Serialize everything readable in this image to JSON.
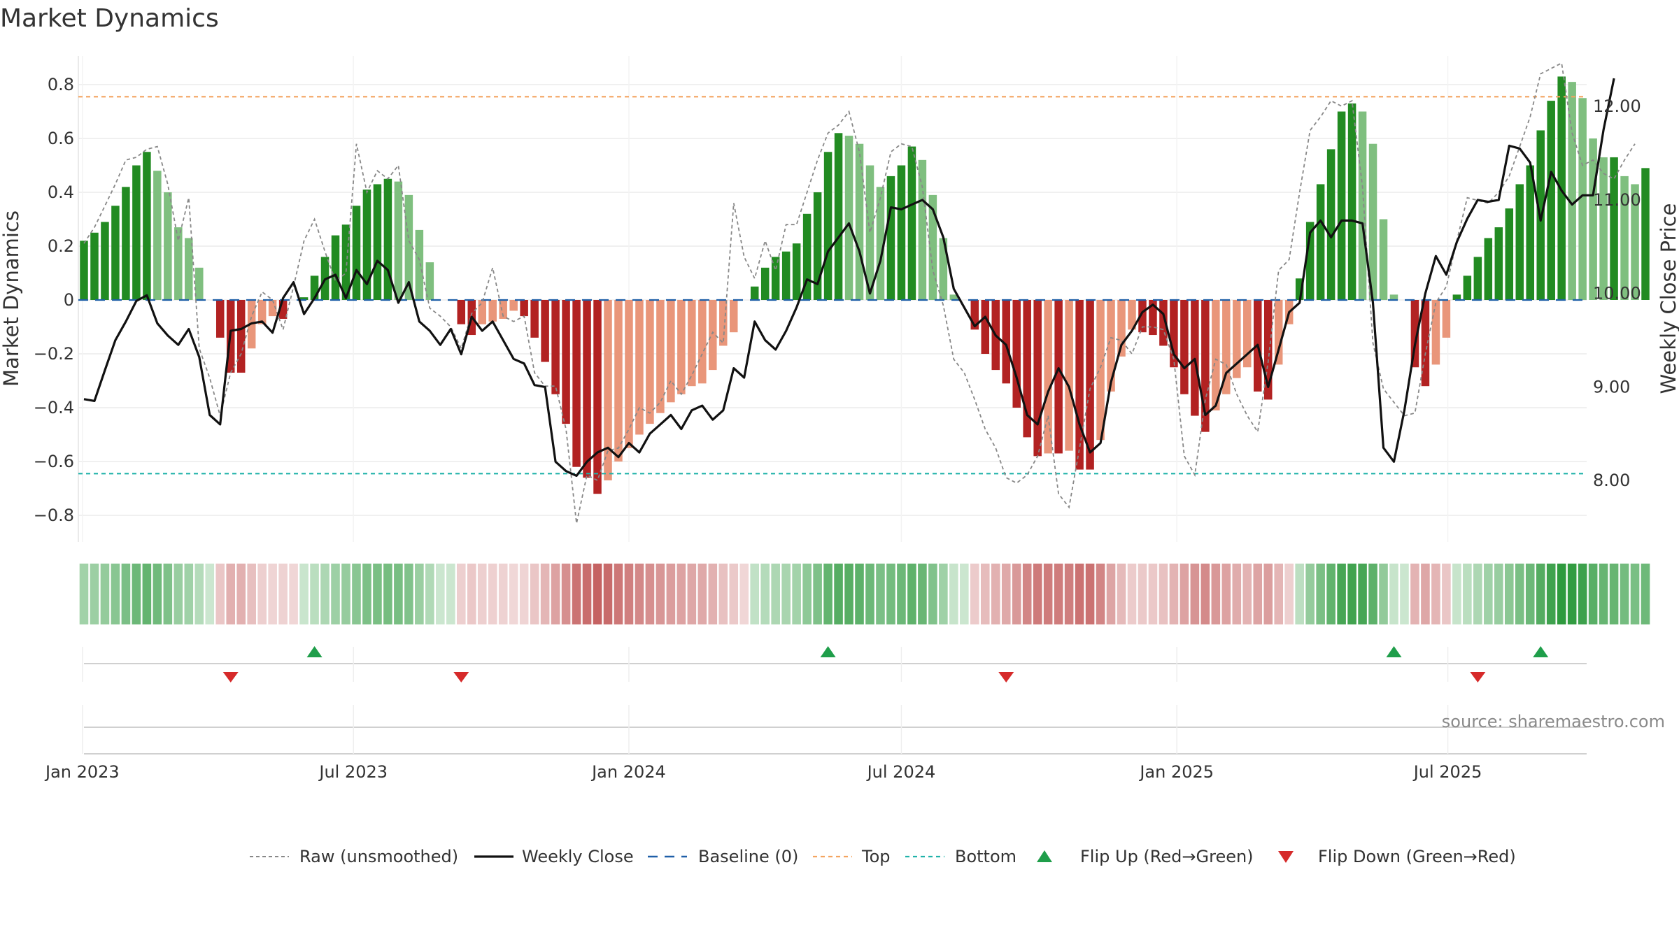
{
  "title": "Market Dynamics",
  "source": "source: sharemaestro.com",
  "colors": {
    "strong_green": "#228B22",
    "light_green": "#7FBF7F",
    "strong_red": "#B22222",
    "light_red": "#E9967A",
    "raw": "#888888",
    "close": "#111111",
    "baseline": "#1f5fa8",
    "top": "#F4A460",
    "bottom": "#20B2AA"
  },
  "chart_data": {
    "type": "bar",
    "x_start": "2023-01-02",
    "x_step_days": 7,
    "x_ticks": [
      {
        "date": "2023-01-01",
        "label": "Jan 2023"
      },
      {
        "date": "2023-07-01",
        "label": "Jul 2023"
      },
      {
        "date": "2024-01-01",
        "label": "Jan 2024"
      },
      {
        "date": "2024-07-01",
        "label": "Jul 2024"
      },
      {
        "date": "2025-01-01",
        "label": "Jan 2025"
      },
      {
        "date": "2025-07-01",
        "label": "Jul 2025"
      }
    ],
    "left_axis": {
      "label": "Market Dynamics",
      "ylim": [
        -0.9,
        0.9
      ],
      "ticks": [
        {
          "v": 0.8,
          "label": "0.8"
        },
        {
          "v": 0.6,
          "label": "0.6"
        },
        {
          "v": 0.4,
          "label": "0.4"
        },
        {
          "v": 0.2,
          "label": "0.2"
        },
        {
          "v": 0.0,
          "label": "0"
        },
        {
          "v": -0.2,
          "label": "−0.2"
        },
        {
          "v": -0.4,
          "label": "−0.4"
        },
        {
          "v": -0.6,
          "label": "−0.6"
        },
        {
          "v": -0.8,
          "label": "−0.8"
        }
      ]
    },
    "right_axis": {
      "label": "Weekly Close Price",
      "ylim": [
        7.35,
        12.6
      ],
      "ticks": [
        {
          "v": 12.0,
          "label": "12.00"
        },
        {
          "v": 11.0,
          "label": "11.00"
        },
        {
          "v": 10.0,
          "label": "10.00"
        },
        {
          "v": 9.0,
          "label": "9.00"
        },
        {
          "v": 8.0,
          "label": "8.00"
        }
      ]
    },
    "top_level": 0.755,
    "bottom_level": -0.645,
    "smoothed": [
      0.22,
      0.25,
      0.29,
      0.35,
      0.42,
      0.5,
      0.55,
      0.48,
      0.4,
      0.27,
      0.23,
      0.12,
      0.0,
      -0.14,
      -0.27,
      -0.27,
      -0.18,
      -0.09,
      -0.06,
      -0.07,
      0.0,
      0.01,
      0.09,
      0.16,
      0.24,
      0.28,
      0.35,
      0.41,
      0.43,
      0.45,
      0.44,
      0.39,
      0.26,
      0.14,
      0.0,
      0.0,
      -0.09,
      -0.13,
      -0.09,
      -0.08,
      -0.07,
      -0.04,
      -0.06,
      -0.14,
      -0.23,
      -0.35,
      -0.46,
      -0.62,
      -0.66,
      -0.72,
      -0.67,
      -0.6,
      -0.55,
      -0.5,
      -0.46,
      -0.42,
      -0.38,
      -0.35,
      -0.32,
      -0.31,
      -0.26,
      -0.17,
      -0.12,
      0.0,
      0.05,
      0.12,
      0.16,
      0.18,
      0.21,
      0.32,
      0.4,
      0.55,
      0.62,
      0.61,
      0.58,
      0.5,
      0.42,
      0.46,
      0.5,
      0.57,
      0.52,
      0.39,
      0.23,
      0.02,
      0.0,
      -0.11,
      -0.2,
      -0.26,
      -0.31,
      -0.4,
      -0.51,
      -0.58,
      -0.57,
      -0.57,
      -0.56,
      -0.63,
      -0.63,
      -0.52,
      -0.34,
      -0.21,
      -0.11,
      -0.12,
      -0.13,
      -0.17,
      -0.25,
      -0.35,
      -0.43,
      -0.49,
      -0.41,
      -0.35,
      -0.29,
      -0.25,
      -0.34,
      -0.37,
      -0.24,
      -0.09,
      0.08,
      0.29,
      0.43,
      0.56,
      0.7,
      0.73,
      0.7,
      0.58,
      0.3,
      0.02,
      0.0,
      -0.25,
      -0.32,
      -0.24,
      -0.14,
      0.02,
      0.09,
      0.16,
      0.23,
      0.27,
      0.34,
      0.43,
      0.5,
      0.63,
      0.74,
      0.83,
      0.81,
      0.75,
      0.6,
      0.53,
      0.53,
      0.46,
      0.43,
      0.49
    ],
    "raw": [
      0.21,
      0.27,
      0.35,
      0.43,
      0.52,
      0.53,
      0.56,
      0.57,
      0.43,
      0.22,
      0.38,
      -0.18,
      -0.29,
      -0.43,
      -0.27,
      -0.2,
      -0.06,
      0.03,
      0.0,
      -0.11,
      0.05,
      0.22,
      0.3,
      0.18,
      0.07,
      0.1,
      0.58,
      0.4,
      0.48,
      0.45,
      0.5,
      0.22,
      0.15,
      -0.03,
      -0.06,
      -0.1,
      -0.18,
      -0.05,
      -0.01,
      0.12,
      -0.06,
      -0.08,
      -0.06,
      -0.27,
      -0.32,
      -0.32,
      -0.48,
      -0.83,
      -0.65,
      -0.67,
      -0.56,
      -0.55,
      -0.48,
      -0.4,
      -0.42,
      -0.38,
      -0.3,
      -0.35,
      -0.28,
      -0.2,
      -0.12,
      -0.16,
      0.36,
      0.16,
      0.08,
      0.22,
      0.11,
      0.28,
      0.28,
      0.4,
      0.52,
      0.62,
      0.65,
      0.7,
      0.55,
      0.25,
      0.38,
      0.55,
      0.58,
      0.57,
      0.42,
      0.11,
      -0.02,
      -0.22,
      -0.27,
      -0.37,
      -0.48,
      -0.55,
      -0.66,
      -0.68,
      -0.65,
      -0.58,
      -0.43,
      -0.72,
      -0.77,
      -0.55,
      -0.33,
      -0.25,
      -0.14,
      -0.15,
      -0.2,
      -0.1,
      -0.1,
      -0.11,
      -0.22,
      -0.58,
      -0.65,
      -0.37,
      -0.22,
      -0.24,
      -0.35,
      -0.43,
      -0.49,
      -0.23,
      0.11,
      0.15,
      0.4,
      0.63,
      0.68,
      0.74,
      0.72,
      0.74,
      0.42,
      -0.16,
      -0.33,
      -0.38,
      -0.43,
      -0.42,
      -0.2,
      -0.01,
      0.05,
      0.22,
      0.38,
      0.37,
      0.36,
      0.4,
      0.46,
      0.57,
      0.68,
      0.84,
      0.86,
      0.88,
      0.62,
      0.5,
      0.52,
      0.47,
      0.45,
      0.52,
      0.58
    ],
    "close": [
      8.87,
      8.85,
      9.18,
      9.5,
      9.7,
      9.92,
      9.98,
      9.68,
      9.55,
      9.45,
      9.62,
      9.32,
      8.7,
      8.6,
      9.6,
      9.62,
      9.68,
      9.7,
      9.58,
      9.95,
      10.12,
      9.78,
      9.95,
      10.15,
      10.2,
      9.95,
      10.25,
      10.1,
      10.35,
      10.25,
      9.9,
      10.12,
      9.7,
      9.6,
      9.45,
      9.62,
      9.35,
      9.75,
      9.6,
      9.7,
      9.5,
      9.3,
      9.25,
      9.02,
      9.0,
      8.2,
      8.1,
      8.05,
      8.2,
      8.3,
      8.35,
      8.25,
      8.4,
      8.3,
      8.5,
      8.6,
      8.7,
      8.55,
      8.75,
      8.8,
      8.65,
      8.75,
      9.2,
      9.1,
      9.7,
      9.5,
      9.4,
      9.6,
      9.85,
      10.15,
      10.1,
      10.45,
      10.6,
      10.75,
      10.45,
      10.0,
      10.35,
      10.92,
      10.9,
      10.95,
      11.0,
      10.9,
      10.6,
      10.05,
      9.85,
      9.65,
      9.75,
      9.55,
      9.45,
      9.1,
      8.7,
      8.6,
      8.95,
      9.2,
      9.0,
      8.6,
      8.3,
      8.4,
      9.05,
      9.45,
      9.6,
      9.8,
      9.88,
      9.78,
      9.35,
      9.2,
      9.3,
      8.7,
      8.8,
      9.15,
      9.25,
      9.35,
      9.45,
      9.0,
      9.4,
      9.8,
      9.9,
      10.65,
      10.78,
      10.6,
      10.78,
      10.78,
      10.75,
      9.9,
      8.35,
      8.2,
      8.75,
      9.45,
      10.0,
      10.4,
      10.2,
      10.55,
      10.8,
      11.0,
      10.98,
      11.0,
      11.58,
      11.55,
      11.4,
      10.78,
      11.3,
      11.1,
      10.95,
      11.05,
      11.05,
      11.75,
      12.3
    ],
    "flip_up_weeks": [
      22,
      71,
      125,
      139
    ],
    "flip_down_weeks": [
      14,
      36,
      88,
      133
    ],
    "series": [
      {
        "name": "Raw (unsmoothed)",
        "key": "raw"
      },
      {
        "name": "Weekly Close",
        "key": "close"
      },
      {
        "name": "Baseline (0)",
        "key": "baseline"
      },
      {
        "name": "Top",
        "key": "top"
      },
      {
        "name": "Bottom",
        "key": "bottom"
      },
      {
        "name": "Flip Up (Red→Green)",
        "key": "flip_up"
      },
      {
        "name": "Flip Down (Green→Red)",
        "key": "flip_down"
      }
    ]
  }
}
